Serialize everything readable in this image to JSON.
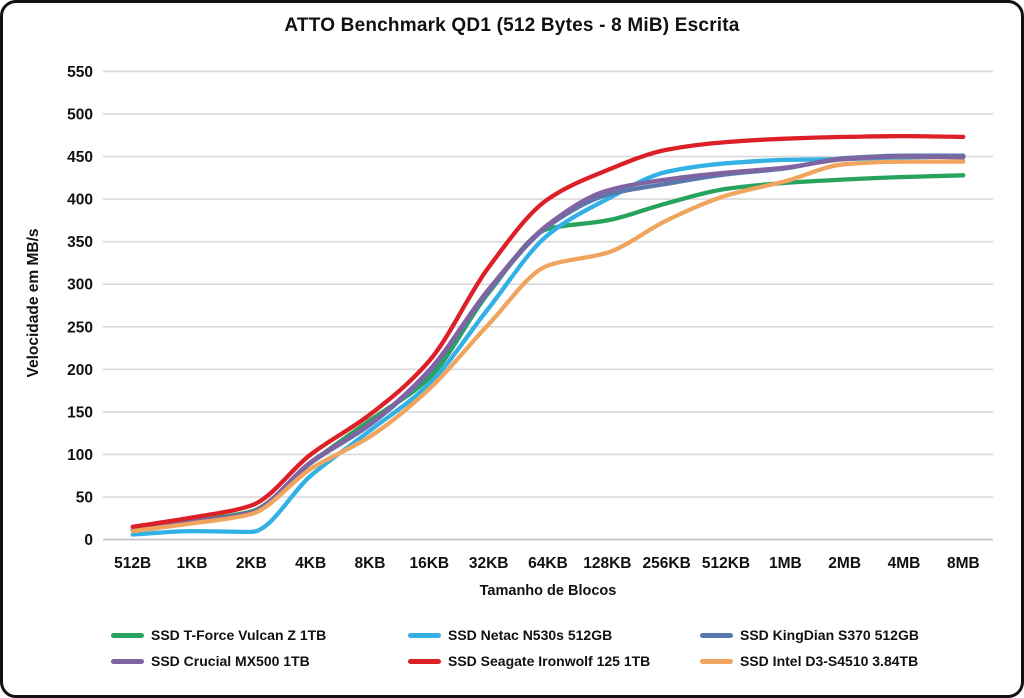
{
  "chart_data": {
    "type": "line",
    "title": "ATTO Benchmark QD1 (512 Bytes - 8 MiB) Escrita",
    "xlabel": "Tamanho de Blocos",
    "ylabel": "Velocidade em MB/s",
    "ylim": [
      0,
      550
    ],
    "y_tick_step": 50,
    "grid": true,
    "smooth_lines": true,
    "legend_position": "bottom",
    "categories": [
      "512B",
      "1KB",
      "2KB",
      "4KB",
      "8KB",
      "16KB",
      "32KB",
      "64KB",
      "128KB",
      "256KB",
      "512KB",
      "1MB",
      "2MB",
      "4MB",
      "8MB"
    ],
    "series": [
      {
        "name": "SSD T-Force Vulcan Z 1TB",
        "color": "#27a35e",
        "values": [
          11,
          22,
          33,
          90,
          140,
          190,
          290,
          365,
          375,
          395,
          412,
          419,
          423,
          426,
          428
        ]
      },
      {
        "name": "SSD Netac N530s 512GB",
        "color": "#33b1e4",
        "values": [
          6,
          10,
          9,
          75,
          128,
          183,
          272,
          358,
          400,
          432,
          442,
          446,
          447,
          449,
          450
        ]
      },
      {
        "name": "SSD KingDian S370 512GB",
        "color": "#5a78ad",
        "values": [
          11,
          21,
          32,
          90,
          135,
          197,
          292,
          368,
          405,
          418,
          429,
          436,
          448,
          451,
          451
        ]
      },
      {
        "name": "SSD Crucial MX500 1TB",
        "color": "#8064a2",
        "values": [
          11,
          21,
          32,
          91,
          136,
          199,
          294,
          370,
          410,
          423,
          431,
          437,
          447,
          450,
          449
        ]
      },
      {
        "name": "SSD Seagate Ironwolf 125 1TB",
        "color": "#dd2027",
        "values": [
          15,
          26,
          40,
          100,
          147,
          210,
          320,
          400,
          434,
          458,
          467,
          471,
          473,
          474,
          473
        ]
      },
      {
        "name": "SSD Intel D3-S4510 3.84TB",
        "color": "#f0a55f",
        "values": [
          10,
          19,
          30,
          83,
          121,
          177,
          253,
          322,
          337,
          375,
          404,
          421,
          441,
          444,
          444
        ]
      }
    ],
    "draw_order": [
      0,
      1,
      2,
      3,
      5,
      4
    ],
    "gridline_color": "#d9d9d9",
    "axis_line_color": "#bfbfbf",
    "text_color": "#111111"
  }
}
